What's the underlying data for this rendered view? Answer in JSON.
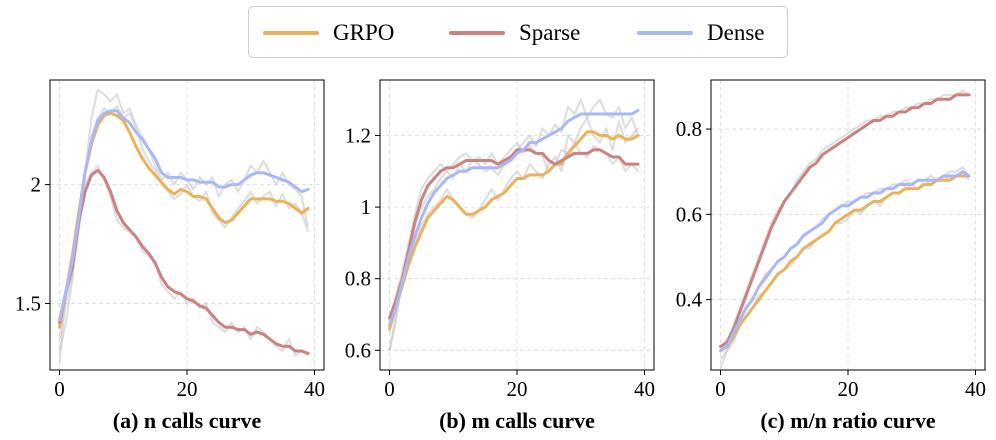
{
  "legend": [
    {
      "name": "GRPO",
      "color": "#e9b35d"
    },
    {
      "name": "Sparse",
      "color": "#c98383"
    },
    {
      "name": "Dense",
      "color": "#aab8f6"
    }
  ],
  "chart_data": [
    {
      "type": "line",
      "title": "(a) n calls curve",
      "xlabel": "",
      "ylabel": "",
      "xlim": [
        -1.5,
        41.5
      ],
      "ylim": [
        1.22,
        2.44
      ],
      "xticks": [
        0,
        20,
        40
      ],
      "yticks": [
        1.5,
        2.0
      ],
      "grid": true,
      "series": [
        {
          "name": "GRPO",
          "raw": [
            1.3,
            1.42,
            1.6,
            1.85,
            2.05,
            2.2,
            2.28,
            2.32,
            2.3,
            2.33,
            2.28,
            2.3,
            2.24,
            2.15,
            2.1,
            2.06,
            2.0,
            1.97,
            1.94,
            1.96,
            2.0,
            1.95,
            1.93,
            1.97,
            1.88,
            1.85,
            1.82,
            1.86,
            1.9,
            1.93,
            1.97,
            1.92,
            1.95,
            1.97,
            1.91,
            1.96,
            1.9,
            1.92,
            1.88,
            1.8
          ],
          "smooth": [
            1.4,
            1.55,
            1.7,
            1.88,
            2.05,
            2.17,
            2.25,
            2.29,
            2.3,
            2.29,
            2.27,
            2.22,
            2.16,
            2.11,
            2.07,
            2.04,
            2.01,
            1.98,
            1.96,
            1.98,
            1.97,
            1.95,
            1.95,
            1.94,
            1.9,
            1.86,
            1.84,
            1.85,
            1.88,
            1.91,
            1.94,
            1.94,
            1.94,
            1.94,
            1.93,
            1.93,
            1.92,
            1.9,
            1.88,
            1.9
          ]
        },
        {
          "name": "Sparse",
          "raw": [
            1.35,
            1.5,
            1.62,
            1.9,
            2.0,
            2.05,
            2.08,
            2.02,
            1.95,
            1.85,
            1.82,
            1.8,
            1.78,
            1.72,
            1.7,
            1.68,
            1.58,
            1.55,
            1.52,
            1.55,
            1.5,
            1.52,
            1.48,
            1.5,
            1.42,
            1.4,
            1.38,
            1.42,
            1.38,
            1.4,
            1.35,
            1.4,
            1.38,
            1.35,
            1.32,
            1.3,
            1.35,
            1.28,
            1.3,
            1.28
          ],
          "smooth": [
            1.42,
            1.55,
            1.65,
            1.84,
            1.97,
            2.04,
            2.06,
            2.03,
            1.97,
            1.89,
            1.84,
            1.81,
            1.78,
            1.74,
            1.71,
            1.67,
            1.61,
            1.57,
            1.55,
            1.54,
            1.52,
            1.51,
            1.49,
            1.48,
            1.45,
            1.42,
            1.4,
            1.4,
            1.39,
            1.39,
            1.37,
            1.38,
            1.37,
            1.35,
            1.33,
            1.32,
            1.32,
            1.3,
            1.3,
            1.29
          ]
        },
        {
          "name": "Dense",
          "raw": [
            1.25,
            1.55,
            1.62,
            1.8,
            2.05,
            2.28,
            2.4,
            2.38,
            2.35,
            2.38,
            2.3,
            2.32,
            2.25,
            2.2,
            2.15,
            2.08,
            2.02,
            2.05,
            2.0,
            2.05,
            2.02,
            1.98,
            2.03,
            2.0,
            2.03,
            1.95,
            2.0,
            2.02,
            1.97,
            2.02,
            2.08,
            2.05,
            2.1,
            2.05,
            2.0,
            2.05,
            2.0,
            1.98,
            1.95,
            1.82
          ],
          "smooth": [
            1.43,
            1.55,
            1.68,
            1.86,
            2.05,
            2.18,
            2.27,
            2.3,
            2.31,
            2.31,
            2.28,
            2.26,
            2.22,
            2.19,
            2.15,
            2.11,
            2.05,
            2.03,
            2.03,
            2.03,
            2.02,
            2.02,
            2.01,
            2.01,
            2.01,
            1.99,
            1.99,
            2.0,
            2.0,
            2.02,
            2.04,
            2.05,
            2.05,
            2.04,
            2.03,
            2.02,
            2.01,
            1.99,
            1.97,
            1.98
          ]
        }
      ]
    },
    {
      "type": "line",
      "title": "(b) m calls curve",
      "xlabel": "",
      "ylabel": "",
      "xlim": [
        -1.5,
        41.5
      ],
      "ylim": [
        0.545,
        1.355
      ],
      "xticks": [
        0,
        20,
        40
      ],
      "yticks": [
        0.6,
        0.8,
        1.0,
        1.2
      ],
      "grid": true,
      "series": [
        {
          "name": "GRPO",
          "raw": [
            0.6,
            0.68,
            0.8,
            0.85,
            0.9,
            0.95,
            0.98,
            1.0,
            1.02,
            1.05,
            1.02,
            1.0,
            0.98,
            0.97,
            0.99,
            1.02,
            1.05,
            1.02,
            1.05,
            1.08,
            1.1,
            1.08,
            1.12,
            1.1,
            1.08,
            1.12,
            1.14,
            1.1,
            1.2,
            1.18,
            1.22,
            1.25,
            1.2,
            1.18,
            1.22,
            1.16,
            1.24,
            1.18,
            1.2,
            1.22
          ],
          "smooth": [
            0.66,
            0.72,
            0.78,
            0.84,
            0.89,
            0.93,
            0.97,
            0.99,
            1.01,
            1.03,
            1.02,
            1.0,
            0.98,
            0.98,
            0.99,
            1.0,
            1.02,
            1.03,
            1.04,
            1.06,
            1.08,
            1.08,
            1.09,
            1.09,
            1.09,
            1.1,
            1.12,
            1.12,
            1.15,
            1.17,
            1.19,
            1.21,
            1.21,
            1.2,
            1.2,
            1.19,
            1.2,
            1.19,
            1.19,
            1.2
          ]
        },
        {
          "name": "Sparse",
          "raw": [
            0.65,
            0.75,
            0.82,
            0.9,
            0.98,
            1.05,
            1.08,
            1.1,
            1.12,
            1.1,
            1.12,
            1.14,
            1.15,
            1.13,
            1.14,
            1.12,
            1.15,
            1.12,
            1.14,
            1.16,
            1.18,
            1.15,
            1.17,
            1.15,
            1.14,
            1.1,
            1.12,
            1.16,
            1.15,
            1.18,
            1.15,
            1.14,
            1.17,
            1.16,
            1.15,
            1.12,
            1.14,
            1.1,
            1.12,
            1.1
          ],
          "smooth": [
            0.69,
            0.74,
            0.8,
            0.88,
            0.96,
            1.02,
            1.06,
            1.08,
            1.1,
            1.11,
            1.11,
            1.12,
            1.13,
            1.13,
            1.13,
            1.13,
            1.13,
            1.12,
            1.13,
            1.14,
            1.16,
            1.16,
            1.16,
            1.15,
            1.15,
            1.13,
            1.12,
            1.13,
            1.14,
            1.15,
            1.15,
            1.15,
            1.16,
            1.16,
            1.15,
            1.14,
            1.14,
            1.12,
            1.12,
            1.12
          ]
        },
        {
          "name": "Dense",
          "raw": [
            0.6,
            0.7,
            0.8,
            0.88,
            0.95,
            1.0,
            1.03,
            1.05,
            1.08,
            1.1,
            1.08,
            1.12,
            1.1,
            1.13,
            1.12,
            1.1,
            1.11,
            1.09,
            1.12,
            1.14,
            1.16,
            1.18,
            1.2,
            1.17,
            1.22,
            1.2,
            1.23,
            1.21,
            1.28,
            1.26,
            1.3,
            1.25,
            1.28,
            1.3,
            1.26,
            1.25,
            1.28,
            1.22,
            1.25,
            1.2
          ],
          "smooth": [
            0.67,
            0.72,
            0.79,
            0.86,
            0.92,
            0.97,
            1.01,
            1.04,
            1.06,
            1.08,
            1.09,
            1.1,
            1.1,
            1.11,
            1.11,
            1.11,
            1.11,
            1.11,
            1.12,
            1.13,
            1.15,
            1.16,
            1.18,
            1.18,
            1.19,
            1.2,
            1.21,
            1.22,
            1.24,
            1.25,
            1.26,
            1.26,
            1.26,
            1.26,
            1.26,
            1.26,
            1.26,
            1.26,
            1.26,
            1.27
          ]
        }
      ]
    },
    {
      "type": "line",
      "title": "(c) m/n ratio curve",
      "xlabel": "",
      "ylabel": "",
      "xlim": [
        -1.5,
        41.5
      ],
      "ylim": [
        0.235,
        0.915
      ],
      "xticks": [
        0,
        20,
        40
      ],
      "yticks": [
        0.4,
        0.6,
        0.8
      ],
      "grid": true,
      "series": [
        {
          "name": "GRPO",
          "raw": [
            0.26,
            0.28,
            0.3,
            0.34,
            0.36,
            0.38,
            0.41,
            0.42,
            0.44,
            0.46,
            0.47,
            0.48,
            0.5,
            0.52,
            0.52,
            0.54,
            0.55,
            0.56,
            0.58,
            0.58,
            0.59,
            0.61,
            0.6,
            0.62,
            0.63,
            0.62,
            0.64,
            0.65,
            0.65,
            0.66,
            0.67,
            0.66,
            0.68,
            0.67,
            0.68,
            0.69,
            0.68,
            0.69,
            0.7,
            0.68
          ],
          "smooth": [
            0.28,
            0.29,
            0.31,
            0.34,
            0.36,
            0.38,
            0.4,
            0.42,
            0.44,
            0.46,
            0.47,
            0.49,
            0.5,
            0.52,
            0.53,
            0.54,
            0.55,
            0.56,
            0.58,
            0.59,
            0.6,
            0.61,
            0.61,
            0.62,
            0.63,
            0.63,
            0.64,
            0.65,
            0.65,
            0.66,
            0.66,
            0.66,
            0.67,
            0.67,
            0.68,
            0.68,
            0.68,
            0.69,
            0.69,
            0.69
          ]
        },
        {
          "name": "Sparse",
          "raw": [
            0.28,
            0.3,
            0.34,
            0.38,
            0.42,
            0.46,
            0.5,
            0.54,
            0.58,
            0.61,
            0.63,
            0.65,
            0.68,
            0.7,
            0.72,
            0.73,
            0.75,
            0.76,
            0.77,
            0.78,
            0.79,
            0.8,
            0.81,
            0.82,
            0.82,
            0.83,
            0.83,
            0.84,
            0.84,
            0.85,
            0.85,
            0.86,
            0.86,
            0.87,
            0.87,
            0.88,
            0.88,
            0.88,
            0.89,
            0.88
          ],
          "smooth": [
            0.29,
            0.3,
            0.33,
            0.37,
            0.41,
            0.45,
            0.49,
            0.53,
            0.57,
            0.6,
            0.63,
            0.65,
            0.67,
            0.69,
            0.71,
            0.72,
            0.74,
            0.75,
            0.76,
            0.77,
            0.78,
            0.79,
            0.8,
            0.81,
            0.82,
            0.82,
            0.83,
            0.83,
            0.84,
            0.84,
            0.85,
            0.85,
            0.86,
            0.86,
            0.87,
            0.87,
            0.87,
            0.88,
            0.88,
            0.88
          ]
        },
        {
          "name": "Dense",
          "raw": [
            0.24,
            0.28,
            0.32,
            0.35,
            0.38,
            0.4,
            0.43,
            0.46,
            0.47,
            0.49,
            0.5,
            0.52,
            0.53,
            0.55,
            0.56,
            0.57,
            0.59,
            0.6,
            0.61,
            0.62,
            0.63,
            0.63,
            0.64,
            0.65,
            0.65,
            0.66,
            0.66,
            0.67,
            0.67,
            0.68,
            0.67,
            0.68,
            0.68,
            0.69,
            0.68,
            0.69,
            0.7,
            0.7,
            0.71,
            0.69
          ],
          "smooth": [
            0.28,
            0.29,
            0.32,
            0.35,
            0.38,
            0.4,
            0.43,
            0.45,
            0.47,
            0.49,
            0.5,
            0.52,
            0.53,
            0.55,
            0.56,
            0.57,
            0.58,
            0.6,
            0.61,
            0.62,
            0.62,
            0.63,
            0.64,
            0.64,
            0.65,
            0.65,
            0.66,
            0.66,
            0.67,
            0.67,
            0.67,
            0.68,
            0.68,
            0.68,
            0.68,
            0.69,
            0.69,
            0.69,
            0.7,
            0.69
          ]
        }
      ]
    }
  ]
}
